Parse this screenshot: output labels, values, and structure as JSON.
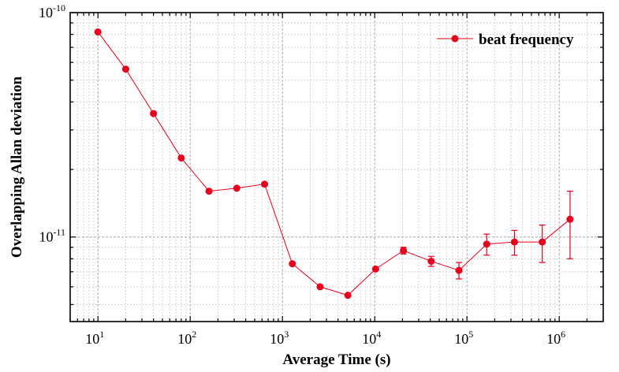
{
  "chart_data": {
    "type": "scatter",
    "title": "",
    "xlabel": "Average Time (s)",
    "ylabel": "Overlapping Allan deviation",
    "xscale": "log",
    "yscale": "log",
    "xlim": [
      5,
      3000000
    ],
    "ylim": [
      4.2e-12,
      1e-10
    ],
    "grid": true,
    "legend_position": "top-right",
    "colors": {
      "series": "#e8001c",
      "grid_major": "#a8a8a8",
      "grid_minor": "#d2d2d2",
      "axis": "#000000"
    },
    "x_ticks": [
      {
        "base": "10",
        "exp": "1",
        "value": 10
      },
      {
        "base": "10",
        "exp": "2",
        "value": 100
      },
      {
        "base": "10",
        "exp": "3",
        "value": 1000
      },
      {
        "base": "10",
        "exp": "4",
        "value": 10000
      },
      {
        "base": "10",
        "exp": "5",
        "value": 100000
      },
      {
        "base": "10",
        "exp": "6",
        "value": 1000000
      }
    ],
    "y_ticks": [
      {
        "base": "10",
        "exp": "-11",
        "value": 1e-11
      },
      {
        "base": "10",
        "exp": "-10",
        "value": 1e-10
      }
    ],
    "series": [
      {
        "name": "beat frequency",
        "marker": "circle",
        "points": [
          {
            "x": 10,
            "y": 8.2e-11,
            "err": 0
          },
          {
            "x": 20,
            "y": 5.6e-11,
            "err": 0
          },
          {
            "x": 40,
            "y": 3.55e-11,
            "err": 0
          },
          {
            "x": 80,
            "y": 2.25e-11,
            "err": 0
          },
          {
            "x": 160,
            "y": 1.6e-11,
            "err": 0
          },
          {
            "x": 320,
            "y": 1.65e-11,
            "err": 0
          },
          {
            "x": 640,
            "y": 1.72e-11,
            "err": 0
          },
          {
            "x": 1280,
            "y": 7.6e-12,
            "err": 0
          },
          {
            "x": 2560,
            "y": 6e-12,
            "err": 0
          },
          {
            "x": 5120,
            "y": 5.5e-12,
            "err": 0
          },
          {
            "x": 10240,
            "y": 7.2e-12,
            "err": 0
          },
          {
            "x": 20480,
            "y": 8.7e-12,
            "err": 3e-13
          },
          {
            "x": 40960,
            "y": 7.8e-12,
            "err": 4e-13
          },
          {
            "x": 81920,
            "y": 7.1e-12,
            "err": 6e-13
          },
          {
            "x": 163840,
            "y": 9.3e-12,
            "err": 1e-12
          },
          {
            "x": 327680,
            "y": 9.5e-12,
            "err": 1.2e-12
          },
          {
            "x": 655360,
            "y": 9.5e-12,
            "err": 1.8e-12
          },
          {
            "x": 1310720,
            "y": 1.2e-11,
            "err": 4e-12
          }
        ]
      }
    ]
  }
}
